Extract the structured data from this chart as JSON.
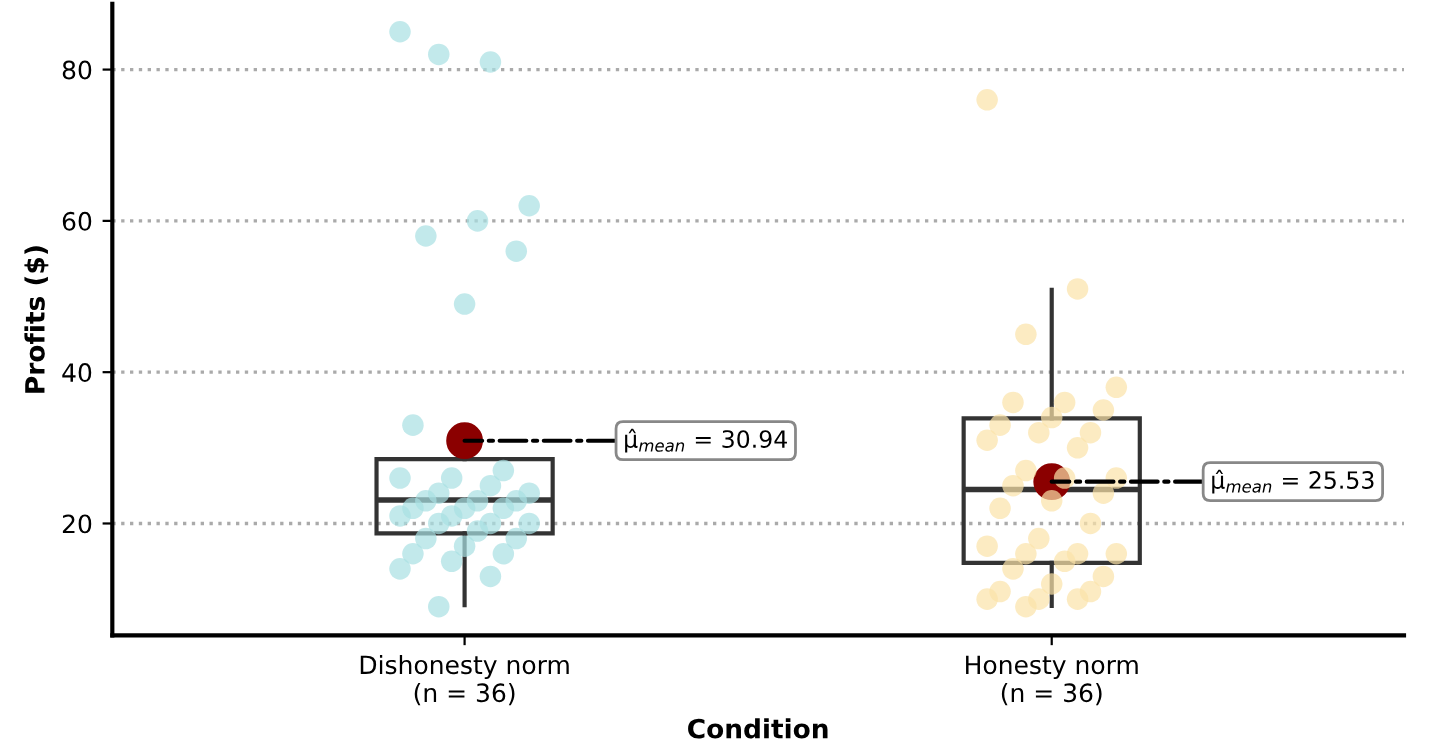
{
  "chart_data": {
    "type": "box",
    "xlabel": "Condition",
    "ylabel": "Profits ($)",
    "categories": [
      "Dishonesty norm\n(n = 36)",
      "Honesty norm\n(n = 36)"
    ],
    "boxes": [
      {
        "low": 9.2,
        "q1": 18.7,
        "median": 23.1,
        "q3": 28.5,
        "high": 28.5,
        "mean": 30.94
      },
      {
        "low": 9.1,
        "q1": 14.8,
        "median": 24.5,
        "q3": 33.9,
        "high": 50.9,
        "mean": 25.53
      }
    ],
    "series": [
      {
        "type": "scatter",
        "color": "#a8dfe3",
        "x": [
          "Dishonesty norm\n(n = 36)",
          "Dishonesty norm\n(n = 36)",
          "Dishonesty norm\n(n = 36)",
          "Dishonesty norm\n(n = 36)",
          "Dishonesty norm\n(n = 36)",
          "Dishonesty norm\n(n = 36)",
          "Dishonesty norm\n(n = 36)",
          "Dishonesty norm\n(n = 36)",
          "Dishonesty norm\n(n = 36)",
          "Dishonesty norm\n(n = 36)",
          "Dishonesty norm\n(n = 36)",
          "Dishonesty norm\n(n = 36)",
          "Dishonesty norm\n(n = 36)",
          "Dishonesty norm\n(n = 36)",
          "Dishonesty norm\n(n = 36)",
          "Dishonesty norm\n(n = 36)",
          "Dishonesty norm\n(n = 36)",
          "Dishonesty norm\n(n = 36)",
          "Dishonesty norm\n(n = 36)",
          "Dishonesty norm\n(n = 36)",
          "Dishonesty norm\n(n = 36)",
          "Dishonesty norm\n(n = 36)",
          "Dishonesty norm\n(n = 36)",
          "Dishonesty norm\n(n = 36)",
          "Dishonesty norm\n(n = 36)",
          "Dishonesty norm\n(n = 36)",
          "Dishonesty norm\n(n = 36)",
          "Dishonesty norm\n(n = 36)",
          "Dishonesty norm\n(n = 36)",
          "Dishonesty norm\n(n = 36)",
          "Dishonesty norm\n(n = 36)",
          "Dishonesty norm\n(n = 36)",
          "Dishonesty norm\n(n = 36)",
          "Dishonesty norm\n(n = 36)",
          "Dishonesty norm\n(n = 36)",
          "Dishonesty norm\n(n = 36)"
        ],
        "values": [
          85,
          81,
          82,
          62,
          60,
          58,
          56,
          49,
          33,
          27,
          26,
          26,
          25,
          24,
          24,
          23,
          23,
          23,
          22,
          22,
          22,
          21,
          21,
          20,
          20,
          20,
          19,
          18,
          18,
          17,
          16,
          16,
          15,
          14,
          13,
          9
        ]
      },
      {
        "type": "scatter",
        "color": "#fbe3a8",
        "x": [
          "Honesty norm\n(n = 36)",
          "Honesty norm\n(n = 36)",
          "Honesty norm\n(n = 36)",
          "Honesty norm\n(n = 36)",
          "Honesty norm\n(n = 36)",
          "Honesty norm\n(n = 36)",
          "Honesty norm\n(n = 36)",
          "Honesty norm\n(n = 36)",
          "Honesty norm\n(n = 36)",
          "Honesty norm\n(n = 36)",
          "Honesty norm\n(n = 36)",
          "Honesty norm\n(n = 36)",
          "Honesty norm\n(n = 36)",
          "Honesty norm\n(n = 36)",
          "Honesty norm\n(n = 36)",
          "Honesty norm\n(n = 36)",
          "Honesty norm\n(n = 36)",
          "Honesty norm\n(n = 36)",
          "Honesty norm\n(n = 36)",
          "Honesty norm\n(n = 36)",
          "Honesty norm\n(n = 36)",
          "Honesty norm\n(n = 36)",
          "Honesty norm\n(n = 36)",
          "Honesty norm\n(n = 36)",
          "Honesty norm\n(n = 36)",
          "Honesty norm\n(n = 36)",
          "Honesty norm\n(n = 36)",
          "Honesty norm\n(n = 36)",
          "Honesty norm\n(n = 36)",
          "Honesty norm\n(n = 36)",
          "Honesty norm\n(n = 36)",
          "Honesty norm\n(n = 36)",
          "Honesty norm\n(n = 36)",
          "Honesty norm\n(n = 36)",
          "Honesty norm\n(n = 36)",
          "Honesty norm\n(n = 36)"
        ],
        "values": [
          76,
          51,
          45,
          38,
          36,
          36,
          35,
          34,
          33,
          32,
          32,
          31,
          30,
          27,
          26,
          26,
          25,
          24,
          23,
          22,
          20,
          18,
          17,
          16,
          16,
          16,
          15,
          14,
          13,
          12,
          11,
          11,
          10,
          10,
          10,
          9
        ]
      }
    ],
    "annotations": [
      "μ̂$_{mean}$ = 30.94",
      {
        "text": "μ̂$_{mean}$ = 25.53",
        "x": "Honesty norm\n(n = 36)",
        "y": 25.53
      }
    ],
    "ylim": [
      5.2,
      88.7
    ],
    "yticks": [
      20,
      40,
      60,
      80
    ],
    "grid": "y"
  }
}
